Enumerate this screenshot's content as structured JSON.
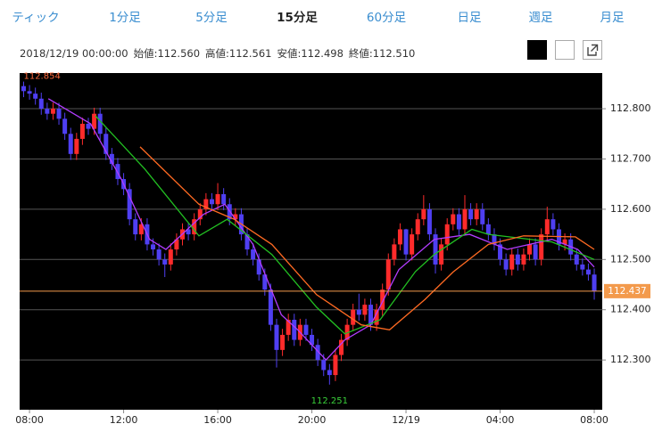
{
  "tabs": [
    {
      "label": "ティック",
      "selected": false
    },
    {
      "label": "1分足",
      "selected": false
    },
    {
      "label": "5分足",
      "selected": false
    },
    {
      "label": "15分足",
      "selected": true
    },
    {
      "label": "60分足",
      "selected": false
    },
    {
      "label": "日足",
      "selected": false
    },
    {
      "label": "週足",
      "selected": false
    },
    {
      "label": "月足",
      "selected": false
    }
  ],
  "info": {
    "datetime": "2018/12/19 00:00:00",
    "items": [
      {
        "label": "始値:",
        "value": "112.560"
      },
      {
        "label": "高値:",
        "value": "112.561"
      },
      {
        "label": "安値:",
        "value": "112.498"
      },
      {
        "label": "終値:",
        "value": "112.510"
      }
    ]
  },
  "chart_data": {
    "type": "candlestick",
    "up_color": "#ff2b2b",
    "down_color": "#4f3ff2",
    "background": "#000000",
    "grid": true,
    "price_line_color": "#f39a4c",
    "max_label_color": "#ff6a3d",
    "min_label_color": "#3ad13a",
    "xlim": [
      -0.42,
      24.34
    ],
    "xticks": [
      {
        "value": 0,
        "label": "08:00"
      },
      {
        "value": 4,
        "label": "12:00"
      },
      {
        "value": 8,
        "label": "16:00"
      },
      {
        "value": 12,
        "label": "20:00"
      },
      {
        "value": 16,
        "label": "12/19"
      },
      {
        "value": 20,
        "label": "04:00"
      },
      {
        "value": 24,
        "label": "08:00"
      }
    ],
    "ylim": [
      112.201,
      112.871
    ],
    "yticks": [
      {
        "value": 112.3,
        "label": "112.300"
      },
      {
        "value": 112.4,
        "label": "112.400"
      },
      {
        "value": 112.5,
        "label": "112.500"
      },
      {
        "value": 112.6,
        "label": "112.600"
      },
      {
        "value": 112.7,
        "label": "112.700"
      },
      {
        "value": 112.8,
        "label": "112.800"
      }
    ],
    "x": [
      -0.25,
      0,
      0.25,
      0.5,
      0.75,
      1,
      1.25,
      1.5,
      1.75,
      2,
      2.25,
      2.5,
      2.75,
      3,
      3.25,
      3.5,
      3.75,
      4,
      4.25,
      4.5,
      4.75,
      5,
      5.25,
      5.5,
      5.75,
      6,
      6.25,
      6.5,
      6.75,
      7,
      7.25,
      7.5,
      7.75,
      8,
      8.25,
      8.5,
      8.75,
      9,
      9.25,
      9.5,
      9.75,
      10,
      10.25,
      10.5,
      10.75,
      11,
      11.25,
      11.5,
      11.75,
      12,
      12.25,
      12.5,
      12.75,
      13,
      13.25,
      13.5,
      13.75,
      14,
      14.25,
      14.5,
      14.75,
      15,
      15.25,
      15.5,
      15.75,
      16,
      16.25,
      16.5,
      16.75,
      17,
      17.25,
      17.5,
      17.75,
      18,
      18.25,
      18.5,
      18.75,
      19,
      19.25,
      19.5,
      19.75,
      20,
      20.25,
      20.5,
      20.75,
      21,
      21.25,
      21.5,
      21.75,
      22,
      22.25,
      22.5,
      22.75,
      23,
      23.25,
      23.5,
      23.75,
      24
    ],
    "open": [
      112.845,
      112.835,
      112.83,
      112.82,
      112.8,
      112.79,
      112.8,
      112.78,
      112.75,
      112.71,
      112.74,
      112.77,
      112.76,
      112.79,
      112.75,
      112.71,
      112.69,
      112.66,
      112.64,
      112.58,
      112.55,
      112.57,
      112.53,
      112.52,
      112.5,
      112.49,
      112.52,
      112.54,
      112.56,
      112.55,
      112.58,
      112.6,
      112.62,
      112.61,
      112.63,
      112.61,
      112.58,
      112.59,
      112.55,
      112.52,
      112.5,
      112.47,
      112.44,
      112.37,
      112.32,
      112.35,
      112.38,
      112.34,
      112.37,
      112.35,
      112.33,
      112.3,
      112.28,
      112.27,
      112.31,
      112.34,
      112.37,
      112.4,
      112.39,
      112.41,
      112.37,
      112.4,
      112.44,
      112.5,
      112.53,
      112.56,
      112.51,
      112.55,
      112.58,
      112.6,
      112.55,
      112.49,
      112.53,
      112.57,
      112.59,
      112.56,
      112.6,
      112.58,
      112.6,
      112.57,
      112.55,
      112.53,
      112.5,
      112.48,
      112.51,
      112.49,
      112.51,
      112.53,
      112.5,
      112.55,
      112.58,
      112.56,
      112.53,
      112.54,
      112.51,
      112.49,
      112.48,
      112.47
    ],
    "high": [
      112.854,
      112.847,
      112.842,
      112.832,
      112.812,
      112.812,
      112.812,
      112.792,
      112.762,
      112.752,
      112.782,
      112.782,
      112.802,
      112.802,
      112.762,
      112.722,
      112.702,
      112.672,
      112.652,
      112.592,
      112.582,
      112.582,
      112.542,
      112.532,
      112.512,
      112.532,
      112.552,
      112.572,
      112.572,
      112.592,
      112.612,
      112.632,
      112.632,
      112.652,
      112.642,
      112.622,
      112.602,
      112.602,
      112.562,
      112.532,
      112.512,
      112.482,
      112.452,
      112.382,
      112.362,
      112.392,
      112.392,
      112.382,
      112.382,
      112.362,
      112.342,
      112.312,
      112.292,
      112.322,
      112.352,
      112.382,
      112.412,
      112.432,
      112.422,
      112.422,
      112.412,
      112.452,
      112.512,
      112.542,
      112.572,
      112.561,
      112.562,
      112.592,
      112.628,
      112.612,
      112.562,
      112.542,
      112.582,
      112.602,
      112.602,
      112.628,
      112.612,
      112.612,
      112.612,
      112.582,
      112.562,
      112.542,
      112.512,
      112.522,
      112.522,
      112.522,
      112.542,
      112.542,
      112.562,
      112.605,
      112.592,
      112.572,
      112.552,
      112.552,
      112.522,
      112.502,
      112.492,
      112.482
    ],
    "low": [
      112.823,
      112.818,
      112.808,
      112.788,
      112.778,
      112.778,
      112.768,
      112.738,
      112.698,
      112.698,
      112.728,
      112.748,
      112.748,
      112.738,
      112.698,
      112.678,
      112.648,
      112.628,
      112.568,
      112.538,
      112.538,
      112.518,
      112.508,
      112.488,
      112.465,
      112.478,
      112.508,
      112.528,
      112.538,
      112.538,
      112.568,
      112.588,
      112.598,
      112.598,
      112.598,
      112.568,
      112.568,
      112.538,
      112.508,
      112.488,
      112.458,
      112.428,
      112.358,
      112.285,
      112.308,
      112.338,
      112.328,
      112.328,
      112.338,
      112.318,
      112.288,
      112.268,
      112.251,
      112.258,
      112.298,
      112.328,
      112.358,
      112.378,
      112.378,
      112.358,
      112.358,
      112.388,
      112.428,
      112.488,
      112.518,
      112.498,
      112.498,
      112.538,
      112.568,
      112.538,
      112.472,
      112.478,
      112.518,
      112.558,
      112.548,
      112.548,
      112.568,
      112.568,
      112.558,
      112.538,
      112.518,
      112.488,
      112.468,
      112.468,
      112.478,
      112.478,
      112.498,
      112.488,
      112.488,
      112.538,
      112.548,
      112.518,
      112.518,
      112.498,
      112.478,
      112.468,
      112.458,
      112.42
    ],
    "close": [
      112.835,
      112.83,
      112.82,
      112.8,
      112.79,
      112.8,
      112.78,
      112.75,
      112.71,
      112.74,
      112.77,
      112.76,
      112.79,
      112.75,
      112.71,
      112.69,
      112.66,
      112.64,
      112.58,
      112.55,
      112.57,
      112.53,
      112.52,
      112.5,
      112.49,
      112.52,
      112.54,
      112.56,
      112.55,
      112.58,
      112.6,
      112.62,
      112.61,
      112.63,
      112.61,
      112.58,
      112.59,
      112.55,
      112.52,
      112.5,
      112.47,
      112.44,
      112.37,
      112.32,
      112.35,
      112.38,
      112.34,
      112.37,
      112.35,
      112.33,
      112.3,
      112.28,
      112.27,
      112.31,
      112.34,
      112.37,
      112.4,
      112.39,
      112.41,
      112.37,
      112.4,
      112.44,
      112.5,
      112.53,
      112.56,
      112.51,
      112.55,
      112.58,
      112.6,
      112.55,
      112.49,
      112.53,
      112.57,
      112.59,
      112.56,
      112.6,
      112.58,
      112.6,
      112.57,
      112.55,
      112.53,
      112.5,
      112.48,
      112.51,
      112.49,
      112.51,
      112.53,
      112.5,
      112.55,
      112.58,
      112.56,
      112.53,
      112.54,
      112.51,
      112.49,
      112.48,
      112.47,
      112.437
    ],
    "lines": [
      {
        "color": "#b23cff",
        "x": [
          0.8,
          2.6,
          3.9,
          5.1,
          5.8,
          7.4,
          8.3,
          9.5,
          10.7,
          11.4,
          12.6,
          13.4,
          14.5,
          15.7,
          17.2,
          18.7,
          20.3,
          22.2,
          23.3,
          24
        ],
        "values": [
          112.82,
          112.77,
          112.66,
          112.54,
          112.52,
          112.59,
          112.61,
          112.53,
          112.39,
          112.36,
          112.3,
          112.34,
          112.37,
          112.48,
          112.54,
          112.55,
          112.52,
          112.54,
          112.52,
          112.485
        ]
      },
      {
        "color": "#22c022",
        "x": [
          2.8,
          4.9,
          7.2,
          8.4,
          10.3,
          12.2,
          13.4,
          14.9,
          16.4,
          17.2,
          18.8,
          19.5,
          22.2,
          24
        ],
        "values": [
          112.786,
          112.68,
          112.547,
          112.58,
          112.51,
          112.405,
          112.352,
          112.38,
          112.476,
          112.51,
          112.56,
          112.55,
          112.535,
          112.5
        ]
      },
      {
        "color": "#ff6a22",
        "x": [
          4.7,
          7.2,
          8.7,
          10.3,
          12.2,
          14.1,
          15.3,
          16.8,
          18,
          19.5,
          21,
          23.2,
          24
        ],
        "values": [
          112.724,
          112.61,
          112.58,
          112.53,
          112.43,
          112.37,
          112.36,
          112.42,
          112.475,
          112.53,
          112.547,
          112.545,
          112.52
        ]
      }
    ]
  }
}
